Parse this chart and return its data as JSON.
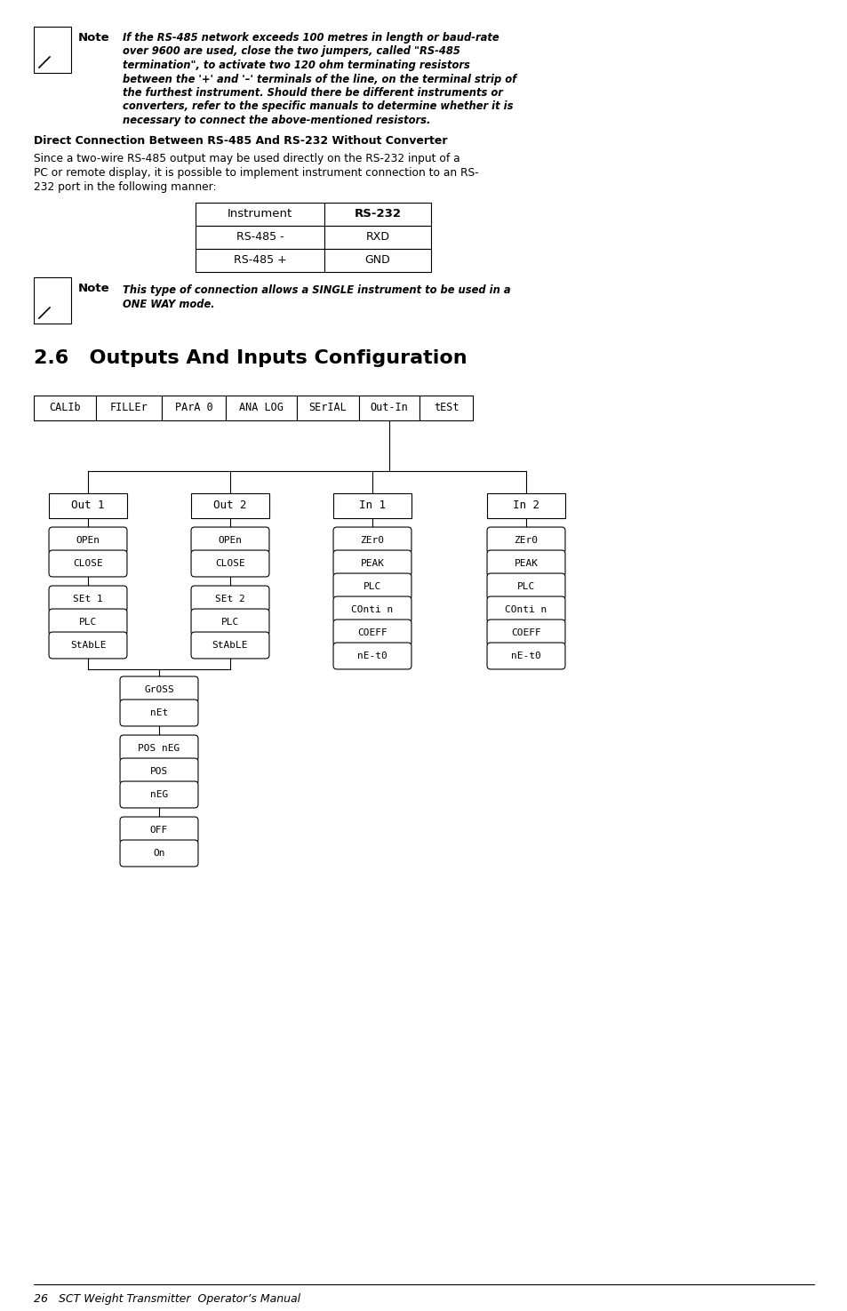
{
  "bg_color": "#ffffff",
  "note1_lines": [
    "If the RS-485 network exceeds 100 metres in length or baud-rate",
    "over 9600 are used, close the two jumpers, called \"RS-485",
    "termination\", to activate two 120 ohm terminating resistors",
    "between the '+' and '–' terminals of the line, on the terminal strip of",
    "the furthest instrument. Should there be different instruments or",
    "converters, refer to the specific manuals to determine whether it is",
    "necessary to connect the above-mentioned resistors."
  ],
  "section_heading": "Direct Connection Between RS-485 And RS-232 Without Converter",
  "body_lines": [
    "Since a two-wire RS-485 output may be used directly on the RS-232 input of a",
    "PC or remote display, it is possible to implement instrument connection to an RS-",
    "232 port in the following manner:"
  ],
  "table_headers": [
    "Instrument",
    "RS-232"
  ],
  "table_rows": [
    [
      "RS-485 -",
      "RXD"
    ],
    [
      "RS-485 +",
      "GND"
    ]
  ],
  "note2_lines": [
    "This type of connection allows a SINGLE instrument to be used in a",
    "ONE WAY mode."
  ],
  "section26_heading": "2.6   Outputs And Inputs Configuration",
  "nav_boxes": [
    "CALIb",
    "FILLEr",
    "PArA 0",
    "ANA LOG",
    "SErIAL",
    "Out-In",
    "tESt"
  ],
  "col_labels": [
    "Out 1",
    "Out 2",
    "In 1",
    "In 2"
  ],
  "out1_group1": [
    "OPEn",
    "CLOSE"
  ],
  "out1_group2": [
    "SEt 1",
    "PLC",
    "StAbLE"
  ],
  "out2_group1": [
    "OPEn",
    "CLOSE"
  ],
  "out2_group2": [
    "SEt 2",
    "PLC",
    "StAbLE"
  ],
  "in1_group": [
    "ZEr0",
    "PEAK",
    "PLC",
    "COnti n",
    "COEFF",
    "nE-t0"
  ],
  "in2_group": [
    "ZEr0",
    "PEAK",
    "PLC",
    "COnti n",
    "COEFF",
    "nE-t0"
  ],
  "shared_group1": [
    "GrOSS",
    "nEt"
  ],
  "shared_group2": [
    "POS nEG",
    "POS",
    "nEG"
  ],
  "shared_group3": [
    "OFF",
    "On"
  ],
  "footer_text": "26   SCT Weight Transmitter  Operator’s Manual"
}
